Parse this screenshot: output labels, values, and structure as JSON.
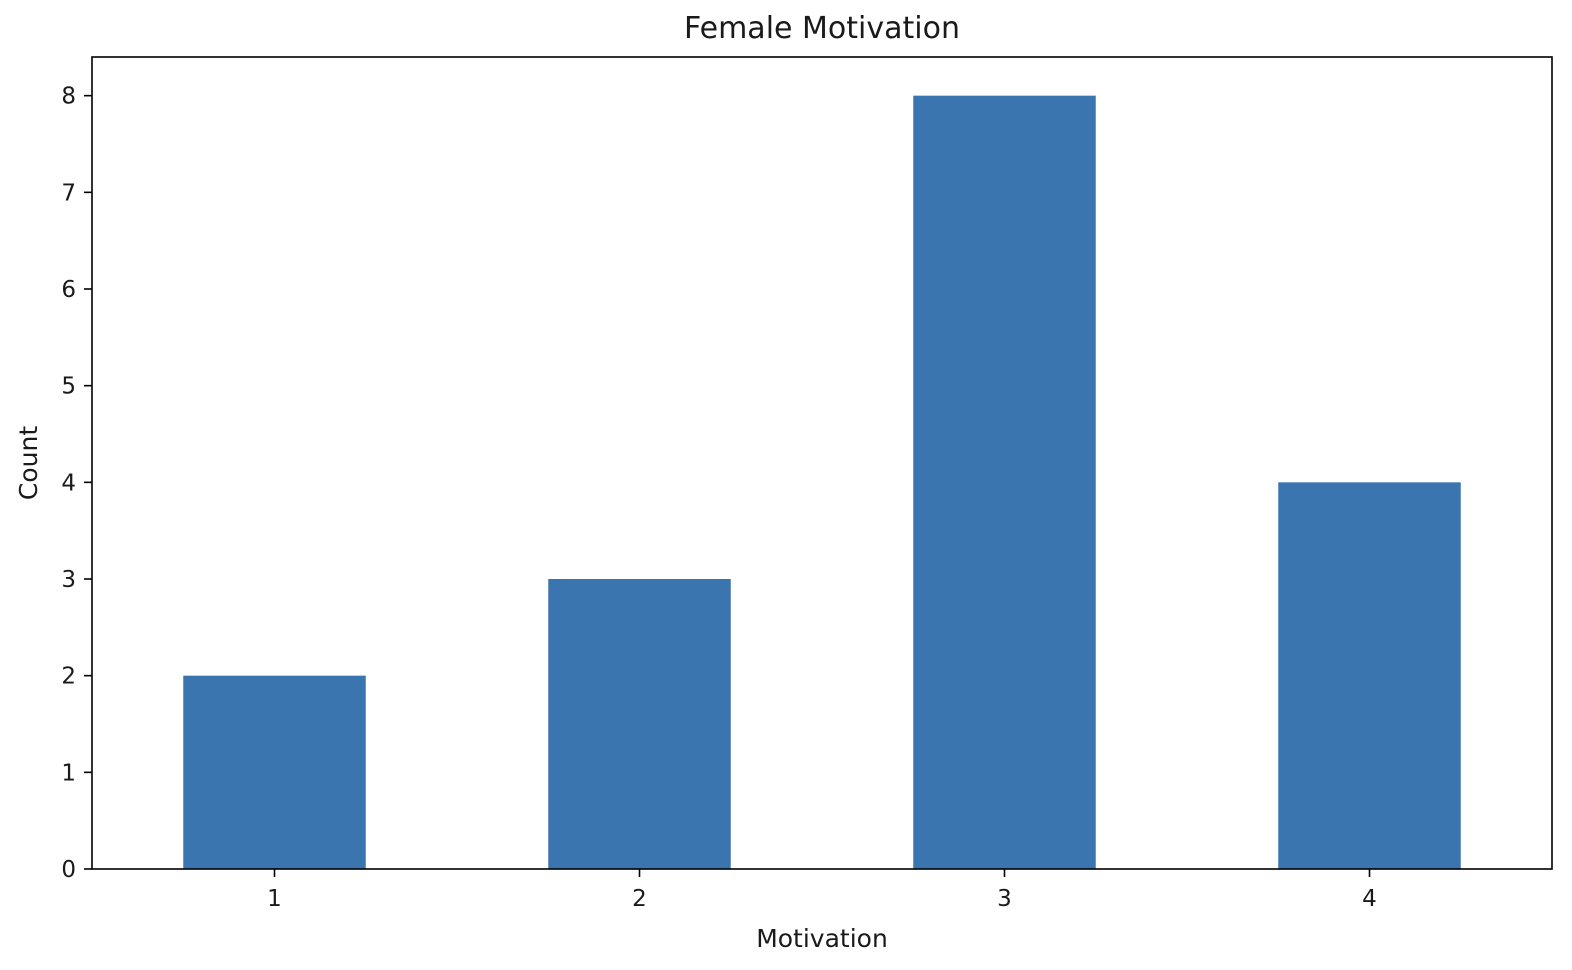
{
  "chart_data": {
    "type": "bar",
    "title": "Female Motivation",
    "xlabel": "Motivation",
    "ylabel": "Count",
    "categories": [
      "1",
      "2",
      "3",
      "4"
    ],
    "values": [
      2,
      3,
      8,
      4
    ],
    "ylim": [
      0,
      8.4
    ],
    "yticks": [
      "0",
      "1",
      "2",
      "3",
      "4",
      "5",
      "6",
      "7",
      "8"
    ],
    "grid": false,
    "legend": "none",
    "bar_color": "#3b75af"
  }
}
